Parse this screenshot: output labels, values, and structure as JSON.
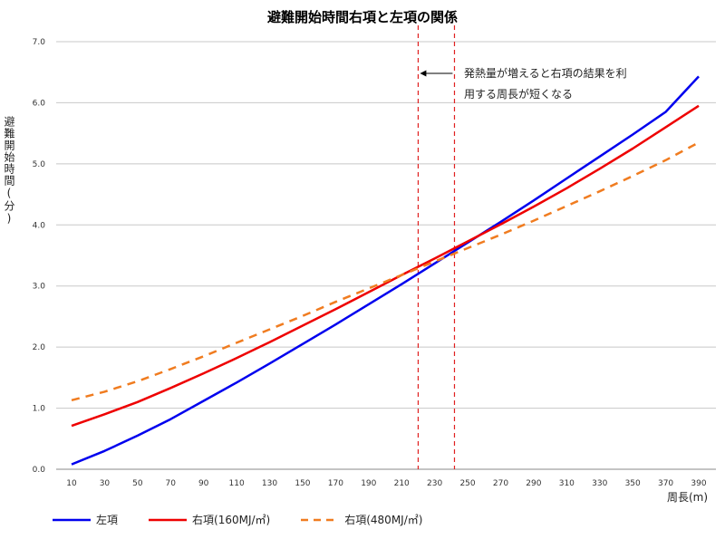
{
  "chart_data": {
    "type": "line",
    "title": "避難開始時間右項と左項の関係",
    "xlabel": "周長(m)",
    "ylabel": "避難開始時間(分)",
    "x": [
      10,
      30,
      50,
      70,
      90,
      110,
      130,
      150,
      170,
      190,
      210,
      230,
      250,
      270,
      290,
      310,
      330,
      350,
      370,
      390
    ],
    "ylim": [
      0,
      7
    ],
    "yticks": [
      "0.0",
      "1.0",
      "2.0",
      "3.0",
      "4.0",
      "5.0",
      "6.0",
      "7.0"
    ],
    "grid": true,
    "legend_position": "bottom",
    "series": [
      {
        "name": "左項",
        "color": "#0000ee",
        "dash": "solid",
        "values": [
          0.08,
          0.3,
          0.55,
          0.82,
          1.12,
          1.42,
          1.73,
          2.05,
          2.37,
          2.7,
          3.03,
          3.37,
          3.71,
          4.05,
          4.4,
          4.76,
          5.12,
          5.48,
          5.85,
          6.43
        ]
      },
      {
        "name": "右項(160MJ/㎡)",
        "color": "#ee0000",
        "dash": "solid",
        "values": [
          0.71,
          0.9,
          1.1,
          1.33,
          1.57,
          1.82,
          2.08,
          2.35,
          2.62,
          2.9,
          3.18,
          3.45,
          3.73,
          4.01,
          4.3,
          4.6,
          4.92,
          5.25,
          5.6,
          5.95
        ]
      },
      {
        "name": "右項(480MJ/㎡)",
        "color": "#f07c20",
        "dash": "dashed",
        "values": [
          1.13,
          1.27,
          1.44,
          1.64,
          1.85,
          2.07,
          2.29,
          2.51,
          2.74,
          2.96,
          3.18,
          3.4,
          3.62,
          3.84,
          4.07,
          4.31,
          4.55,
          4.8,
          5.06,
          5.35
        ]
      }
    ],
    "reference_lines": [
      {
        "x": 220,
        "color": "#e02020",
        "style": "dashed"
      },
      {
        "x": 242,
        "color": "#e02020",
        "style": "dashed"
      }
    ],
    "annotation": {
      "line1": "発熱量が増えると右項の結果を利",
      "line2": "用する周長が短くなる",
      "arrow": "left"
    }
  }
}
